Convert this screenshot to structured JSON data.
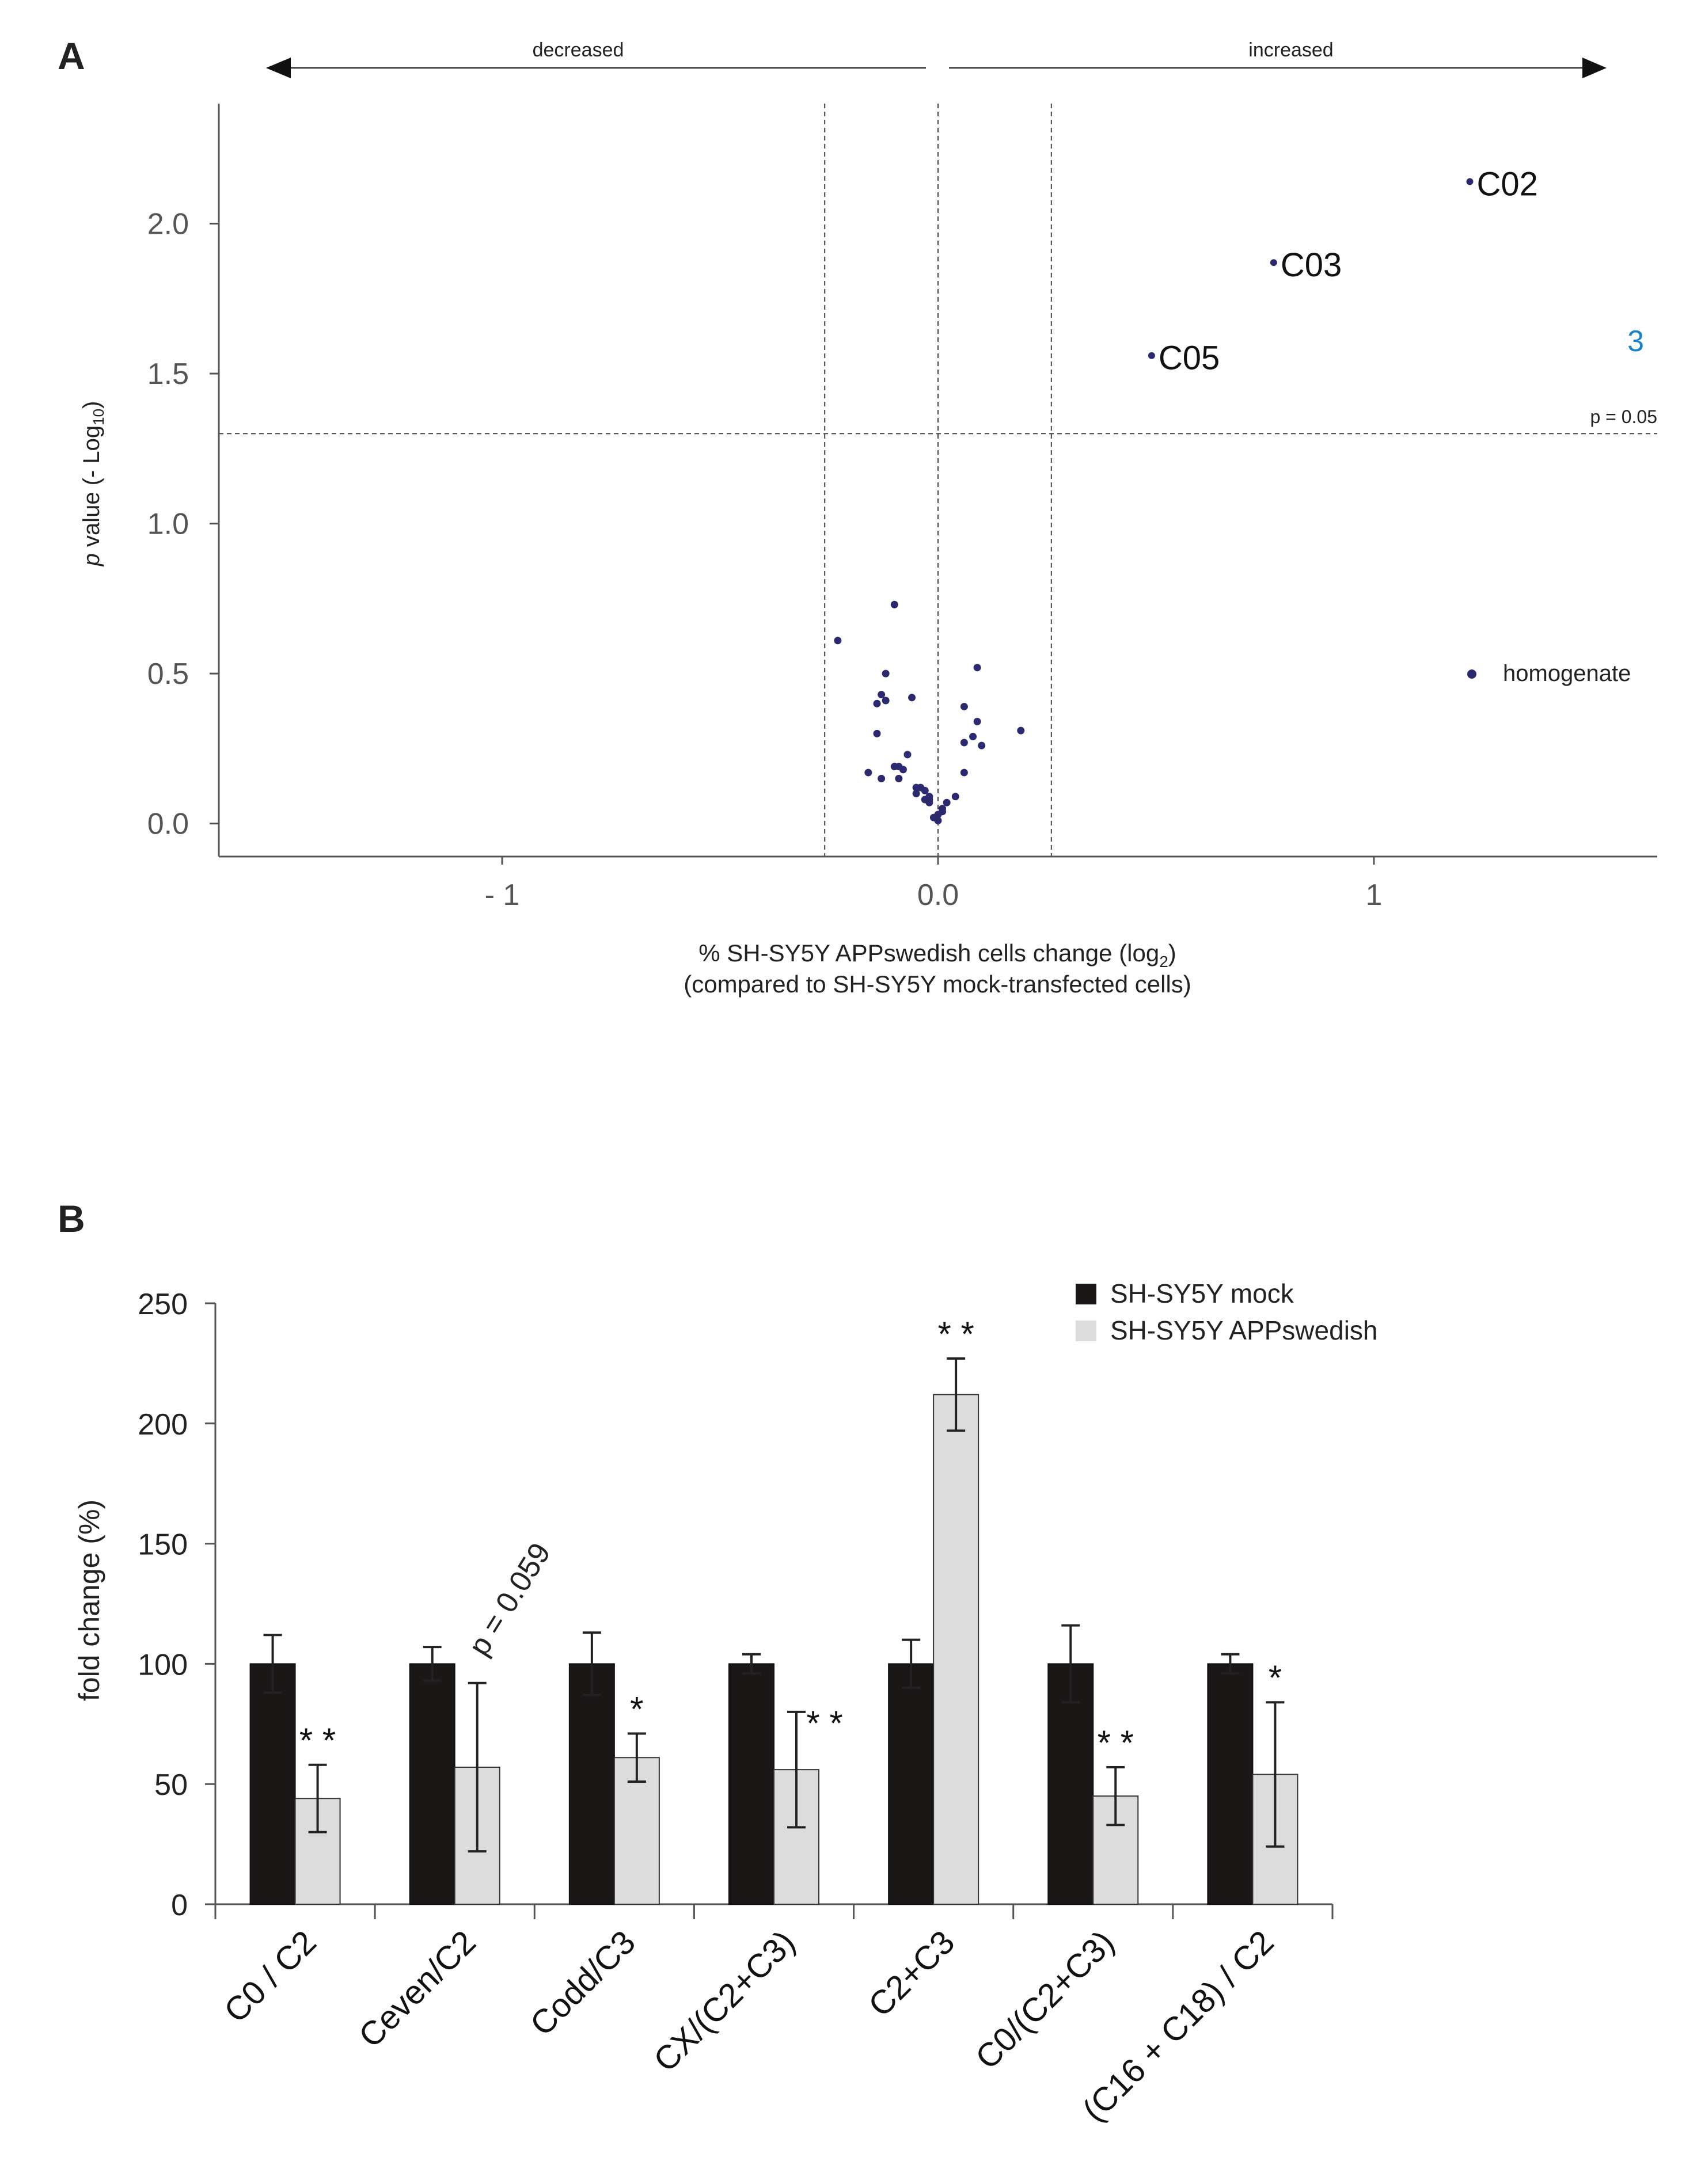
{
  "colors": {
    "point": "#2b2a6f",
    "mock": "#1a1716",
    "app": "#dcdcdc",
    "highlight": "#1b82c7",
    "axis": "#555555"
  },
  "chart_data": [
    {
      "type": "scatter",
      "panel_label": "A",
      "arrow_left_label": "decreased",
      "arrow_right_label": "increased",
      "xlabel_line1": "% SH-SY5Y APPswedish cells change (log",
      "xlabel_sub": "2",
      "xlabel_close": ")",
      "xlabel_line2": "(compared to SH-SY5Y mock-transfected cells)",
      "ylabel_italic": "p",
      "ylabel_rest": " value (- Log",
      "ylabel_sub": "10",
      "ylabel_close": ")",
      "xlim": [
        -1.65,
        1.65
      ],
      "ylim": [
        -0.11,
        2.4
      ],
      "x_ticks": [
        {
          "value": -1,
          "label": "- 1"
        },
        {
          "value": 0,
          "label": "0.0"
        },
        {
          "value": 1,
          "label": "1"
        }
      ],
      "y_ticks": [
        {
          "value": 0.0,
          "label": "0.0"
        },
        {
          "value": 0.5,
          "label": "0.5"
        },
        {
          "value": 1.0,
          "label": "1.0"
        },
        {
          "value": 1.5,
          "label": "1.5"
        },
        {
          "value": 2.0,
          "label": "2.0"
        }
      ],
      "threshold_y": 1.3,
      "threshold_label": "p = 0.05",
      "vertical_lines": [
        -0.26,
        0.0,
        0.26
      ],
      "labeled_points": [
        {
          "label": "C02",
          "x": 1.22,
          "y": 2.14
        },
        {
          "label": "C03",
          "x": 0.77,
          "y": 1.87
        },
        {
          "label": "C05",
          "x": 0.49,
          "y": 1.56
        }
      ],
      "count_annotation": "3",
      "legend_label": "homogenate",
      "points": [
        [
          -0.1,
          0.73
        ],
        [
          -0.23,
          0.61
        ],
        [
          0.09,
          0.52
        ],
        [
          -0.12,
          0.5
        ],
        [
          -0.13,
          0.43
        ],
        [
          -0.12,
          0.41
        ],
        [
          -0.14,
          0.4
        ],
        [
          -0.06,
          0.42
        ],
        [
          0.06,
          0.39
        ],
        [
          0.09,
          0.34
        ],
        [
          0.19,
          0.31
        ],
        [
          -0.14,
          0.3
        ],
        [
          0.08,
          0.29
        ],
        [
          0.1,
          0.26
        ],
        [
          0.06,
          0.27
        ],
        [
          -0.07,
          0.23
        ],
        [
          -0.1,
          0.19
        ],
        [
          -0.09,
          0.19
        ],
        [
          -0.08,
          0.18
        ],
        [
          -0.16,
          0.17
        ],
        [
          -0.13,
          0.15
        ],
        [
          0.06,
          0.17
        ],
        [
          -0.09,
          0.15
        ],
        [
          -0.05,
          0.12
        ],
        [
          -0.04,
          0.12
        ],
        [
          -0.03,
          0.11
        ],
        [
          -0.05,
          0.1
        ],
        [
          -0.02,
          0.09
        ],
        [
          -0.03,
          0.08
        ],
        [
          -0.02,
          0.07
        ],
        [
          0.04,
          0.09
        ],
        [
          0.02,
          0.07
        ],
        [
          0.01,
          0.05
        ],
        [
          0.01,
          0.04
        ],
        [
          0.0,
          0.03
        ],
        [
          -0.01,
          0.02
        ],
        [
          0.0,
          0.01
        ],
        [
          -0.02,
          0.08
        ]
      ]
    },
    {
      "type": "bar",
      "panel_label": "B",
      "ylabel": "fold change (%)",
      "ylim": [
        0,
        250
      ],
      "y_ticks": [
        0,
        50,
        100,
        150,
        200,
        250
      ],
      "categories": [
        "C0 / C2",
        "Ceven/C2",
        "Codd/C3",
        "CX/(C2+C3)",
        "C2+C3",
        "C0/(C2+C3)",
        "(C16 + C18) / C2"
      ],
      "series": [
        {
          "name": "SH-SY5Y mock",
          "values": [
            100,
            100,
            100,
            100,
            100,
            100,
            100
          ],
          "errors": [
            12,
            7,
            13,
            4,
            10,
            16,
            4
          ]
        },
        {
          "name": "SH-SY5Y APPswedish",
          "values": [
            44,
            57,
            61,
            56,
            212,
            45,
            54
          ],
          "errors": [
            14,
            35,
            10,
            24,
            15,
            12,
            30
          ]
        }
      ],
      "significance": [
        "* *",
        "",
        "*",
        "* *",
        "* *",
        "* *",
        "*"
      ],
      "p_note": "p = 0.059"
    }
  ]
}
